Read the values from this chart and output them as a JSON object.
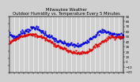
{
  "title": "Milwaukee Weather\nOutdoor Humidity vs. Temperature Every 5 Minutes",
  "title_fontsize": 3.8,
  "background_color": "#d0d0d0",
  "plot_bg_color": "#d0d0d0",
  "grid_color": "#ffffff",
  "humidity_color": "#0000dd",
  "temp_color": "#dd0000",
  "ylim_left": [
    20,
    100
  ],
  "ylim_right": [
    -20,
    90
  ],
  "yticks_right": [
    -20,
    -10,
    0,
    10,
    20,
    30,
    40,
    50,
    60,
    70,
    80,
    90
  ],
  "ylabel_right_fontsize": 3.0,
  "n_points": 200,
  "humidity_keypoints_x": [
    0.0,
    0.05,
    0.12,
    0.22,
    0.32,
    0.42,
    0.52,
    0.62,
    0.72,
    0.82,
    0.9,
    1.0
  ],
  "humidity_keypoints_y": [
    75,
    70,
    78,
    85,
    75,
    65,
    60,
    58,
    70,
    80,
    75,
    72
  ],
  "temp_keypoints_x": [
    0.0,
    0.05,
    0.12,
    0.2,
    0.28,
    0.36,
    0.44,
    0.52,
    0.6,
    0.68,
    0.78,
    0.88,
    0.95,
    1.0
  ],
  "temp_keypoints_y": [
    40,
    45,
    52,
    55,
    50,
    40,
    30,
    22,
    18,
    20,
    35,
    50,
    50,
    48
  ]
}
